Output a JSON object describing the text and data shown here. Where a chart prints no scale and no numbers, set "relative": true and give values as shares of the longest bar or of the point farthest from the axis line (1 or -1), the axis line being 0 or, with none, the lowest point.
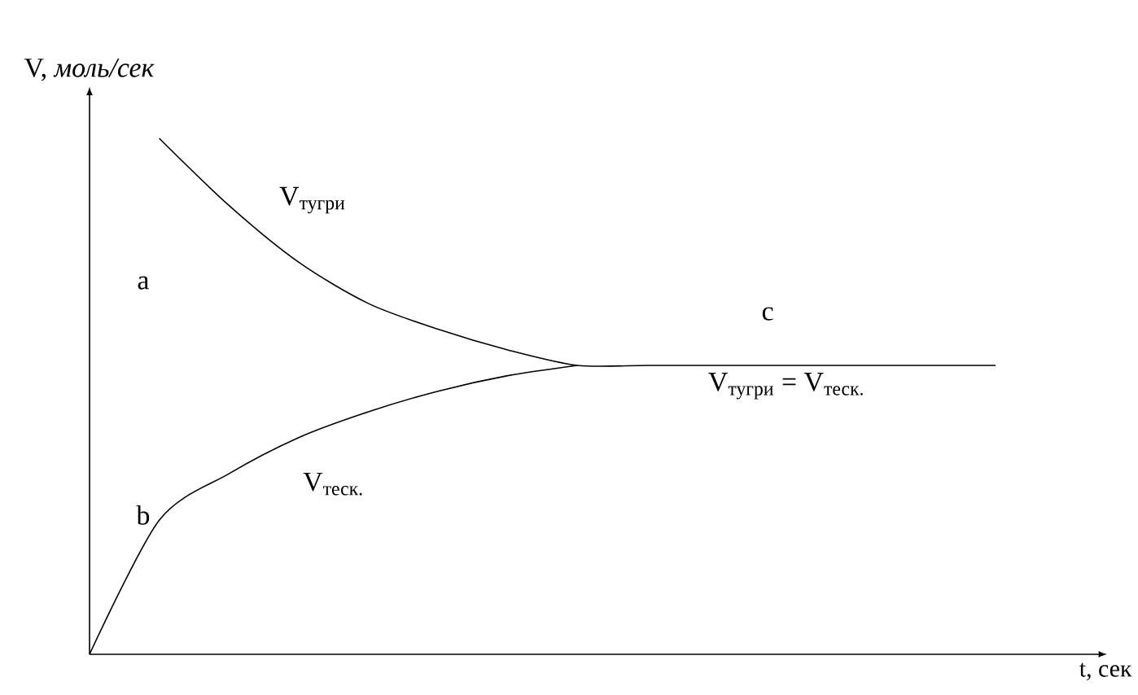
{
  "chart_data": {
    "type": "line",
    "relative": true,
    "xlabel": "t, сек",
    "ylabel": "V, *моль/сек*",
    "categories": [
      null,
      null,
      null,
      null,
      null,
      null,
      null,
      null,
      null,
      null,
      null,
      null,
      null,
      null
    ],
    "series": [
      {
        "name": "V$_{тугри}$",
        "color": "#000000",
        "values": [
          null,
          1.0,
          0.87,
          0.76,
          0.68,
          0.63,
          0.59,
          0.56,
          0.56,
          0.56,
          0.56,
          0.56,
          0.56,
          0.56
        ]
      },
      {
        "name": "V$_{теск.}$",
        "color": "#000000",
        "values": [
          0,
          0.26,
          0.35,
          0.42,
          0.47,
          0.51,
          0.54,
          0.56,
          null,
          null,
          null,
          null,
          null,
          null
        ]
      }
    ],
    "annotations": [
      "a",
      "b",
      "c",
      "V$_{тугри}$ = V$_{теск.}$"
    ],
    "marker": "none",
    "line_style": "solid"
  }
}
